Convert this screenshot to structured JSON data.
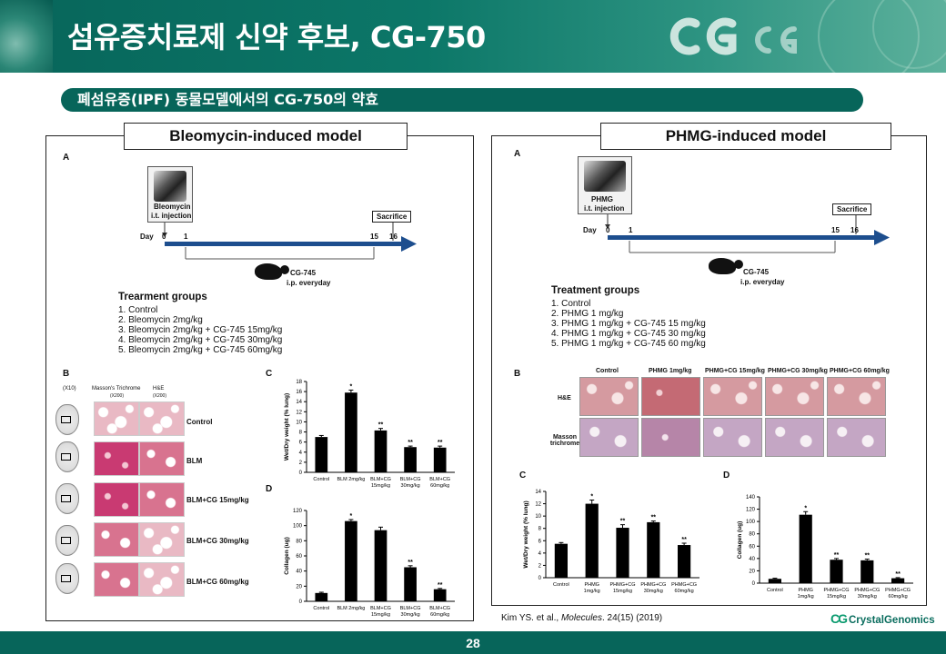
{
  "header": {
    "title": "섬유증치료제 신약 후보, CG-750"
  },
  "subtitle": "폐섬유증(IPF) 동물모델에서의 CG-750의 약효",
  "left_panel": {
    "title": "Bleomycin-induced model",
    "label_a": "A",
    "injection_line1": "Bleomycin",
    "injection_line2": "i.t. injection",
    "day_label": "Day",
    "days": [
      "0",
      "1",
      "15",
      "16"
    ],
    "sacrifice": "Sacrifice",
    "drug_line1": "CG-745",
    "drug_line2": "i.p. everyday",
    "groups_title": "Trearment groups",
    "groups": [
      "1. Control",
      "2. Bleomycin 2mg/kg",
      "3. Bleomycin 2mg/kg + CG-745 15mg/kg",
      "4. Bleomycin 2mg/kg + CG-745 30mg/kg",
      "5. Bleomycin 2mg/kg + CG-745 60mg/kg"
    ],
    "label_b": "B",
    "mag": "(X10)",
    "col_masson": "Masson's Trichrome",
    "col_masson_mag": "(X200)",
    "col_he": "H&E",
    "col_he_mag": "(X200)",
    "row_labels": [
      "Control",
      "BLM",
      "BLM+CG 15mg/kg",
      "BLM+CG 30mg/kg",
      "BLM+CG 60mg/kg"
    ],
    "label_c": "C",
    "label_d": "D"
  },
  "right_panel": {
    "title": "PHMG-induced model",
    "label_a": "A",
    "injection_line1": "PHMG",
    "injection_line2": "i.t. injection",
    "day_label": "Day",
    "days": [
      "0",
      "1",
      "15",
      "16"
    ],
    "sacrifice": "Sacrifice",
    "drug_line1": "CG-745",
    "drug_line2": "i.p. everyday",
    "groups_title": "Treatment groups",
    "groups": [
      "1. Control",
      "2. PHMG 1 mg/kg",
      "3. PHMG 1 mg/kg + CG-745 15 mg/kg",
      "4. PHMG 1 mg/kg + CG-745 30 mg/kg",
      "5. PHMG 1 mg/kg + CG-745 60 mg/kg"
    ],
    "label_b": "B",
    "histo_cols": [
      "Control",
      "PHMG 1mg/kg",
      "PHMG+CG 15mg/kg",
      "PHMG+CG 30mg/kg",
      "PHMG+CG 60mg/kg"
    ],
    "histo_rows": [
      "H&E",
      "Masson trichrome"
    ],
    "label_c": "C",
    "label_d": "D"
  },
  "chart_data": [
    {
      "id": "left-c",
      "type": "bar",
      "ylabel": "Wet/Dry weight (% lung)",
      "ylim": [
        0,
        18
      ],
      "yticks": [
        0,
        2,
        4,
        6,
        8,
        10,
        12,
        14,
        16,
        18
      ],
      "categories": [
        "Control",
        "BLM 2mg/kg",
        "BLM+CG 15mg/kg",
        "BLM+CG 30mg/kg",
        "BLM+CG 60mg/kg"
      ],
      "values": [
        7.0,
        15.8,
        8.3,
        5.0,
        4.9
      ],
      "errors": [
        0.3,
        0.5,
        0.4,
        0.2,
        0.3
      ],
      "marks": [
        "",
        "*",
        "**",
        "**",
        "**"
      ]
    },
    {
      "id": "left-d",
      "type": "bar",
      "ylabel": "Collagen (ug)",
      "ylim": [
        0,
        120
      ],
      "yticks": [
        0,
        20,
        40,
        60,
        80,
        100,
        120
      ],
      "categories": [
        "Control",
        "BLM 2mg/kg",
        "BLM+CG 15mg/kg",
        "BLM+CG 30mg/kg",
        "BLM+CG 60mg/kg"
      ],
      "values": [
        11,
        106,
        94,
        45,
        16
      ],
      "errors": [
        1,
        2,
        4,
        2,
        1
      ],
      "marks": [
        "",
        "*",
        "",
        "**",
        "**"
      ]
    },
    {
      "id": "right-c",
      "type": "bar",
      "ylabel": "Wet/Dry weight (% lung)",
      "ylim": [
        0,
        14
      ],
      "yticks": [
        0,
        2,
        4,
        6,
        8,
        10,
        12,
        14
      ],
      "categories": [
        "Control",
        "PHMG 1mg/kg",
        "PHMG+CG 15mg/kg",
        "PHMG+CG 30mg/kg",
        "PHMG+CG 60mg/kg"
      ],
      "values": [
        5.5,
        12.0,
        8.1,
        9.0,
        5.3
      ],
      "errors": [
        0.2,
        0.6,
        0.5,
        0.2,
        0.3
      ],
      "marks": [
        "",
        "*",
        "**",
        "**",
        "**"
      ]
    },
    {
      "id": "right-d",
      "type": "bar",
      "ylabel": "Collagen (ug)",
      "ylim": [
        0,
        140
      ],
      "yticks": [
        0,
        20,
        40,
        60,
        80,
        100,
        120,
        140
      ],
      "categories": [
        "Control",
        "PHMG 1mg/kg",
        "PHMG+CG 15mg/kg",
        "PHMG+CG 30mg/kg",
        "PHMG+CG 60mg/kg"
      ],
      "values": [
        7,
        111,
        38,
        37,
        8
      ],
      "errors": [
        1,
        5,
        2,
        2,
        1
      ],
      "marks": [
        "",
        "*",
        "**",
        "**",
        "**"
      ]
    }
  ],
  "citation": {
    "authors": "Kim YS. et al., ",
    "journal": "Molecules",
    "volume": ". 24(15) (2019)"
  },
  "logo": {
    "mark": "CG",
    "text": "CrystalGenomics"
  },
  "page_number": "28"
}
